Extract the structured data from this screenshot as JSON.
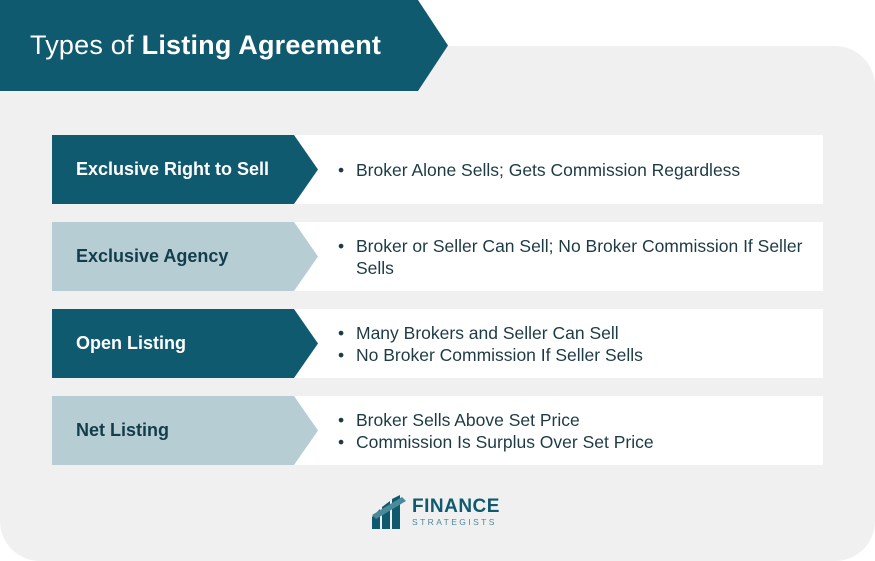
{
  "title": {
    "light": "Types of",
    "bold": "Listing Agreement"
  },
  "rows": [
    {
      "label": "Exclusive Right to Sell",
      "style": "dark",
      "bullets": [
        "Broker Alone Sells; Gets Commission Regardless"
      ]
    },
    {
      "label": "Exclusive Agency",
      "style": "light",
      "bullets": [
        "Broker or Seller Can Sell; No Broker Commission If Seller Sells"
      ]
    },
    {
      "label": "Open Listing",
      "style": "dark",
      "bullets": [
        "Many Brokers and Seller Can Sell",
        "No Broker Commission If Seller Sells"
      ]
    },
    {
      "label": "Net Listing",
      "style": "light",
      "bullets": [
        "Broker Sells Above Set Price",
        "Commission Is Surplus Over Set Price"
      ]
    }
  ],
  "logo": {
    "line1": "FINANCE",
    "line2": "STRATEGISTS"
  },
  "colors": {
    "primary": "#0f5a6e",
    "secondary": "#b6cdd3",
    "panel": "#f0f0f0"
  }
}
